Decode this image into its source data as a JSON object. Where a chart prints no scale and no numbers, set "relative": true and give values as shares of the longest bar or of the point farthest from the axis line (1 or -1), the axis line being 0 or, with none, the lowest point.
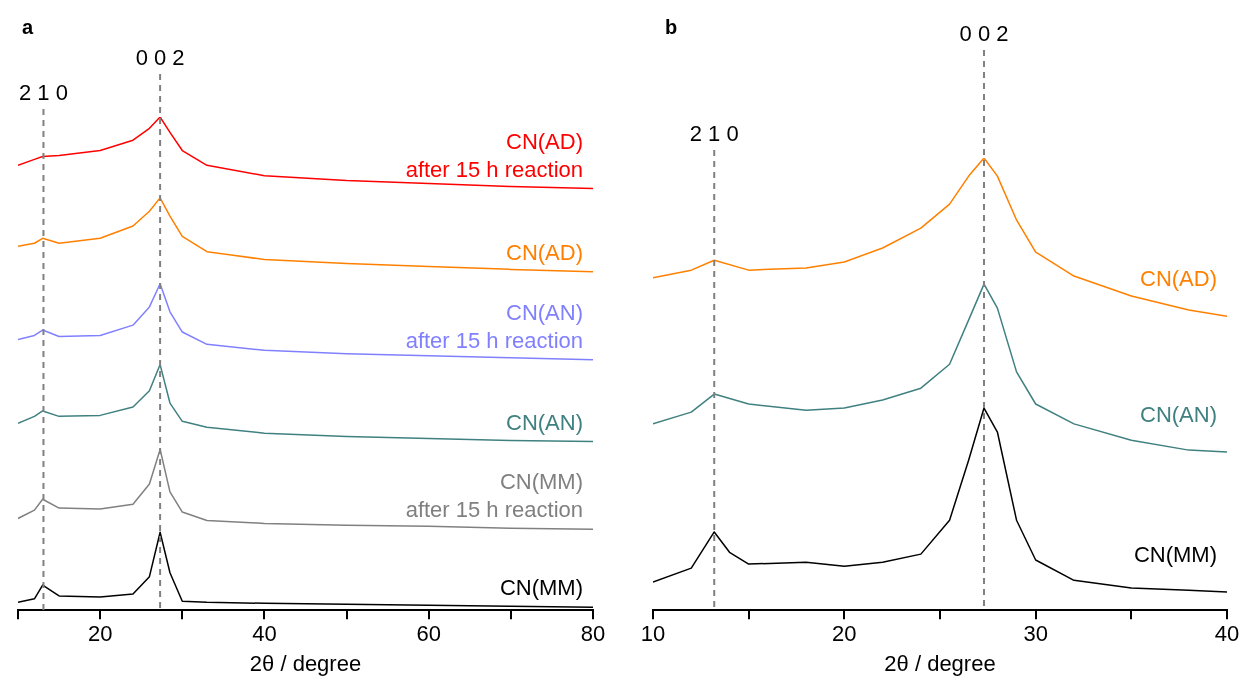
{
  "chart_data": [
    {
      "type": "line",
      "title": "a",
      "xlabel": "2θ / degree",
      "relative": true,
      "xlim": [
        10,
        80
      ],
      "xticks": [
        {
          "value": 10,
          "label": null
        },
        20,
        {
          "value": 30,
          "label": null
        },
        40,
        {
          "value": 50,
          "label": null
        },
        60,
        {
          "value": 70,
          "label": null
        },
        80
      ],
      "grid": false,
      "legend": false,
      "marker": "none",
      "line_style": "solid",
      "tick_labels": "x",
      "ref_lines": [
        {
          "axis": "x",
          "value": 13.1,
          "color": "#808080",
          "line_style": "dashed"
        },
        {
          "axis": "x",
          "value": 27.3,
          "color": "#808080",
          "line_style": "dashed"
        }
      ],
      "annotations": [
        "2 1 0",
        "0 0 2"
      ],
      "series": [
        {
          "name": "CN(AD)\nafter 15 h reaction",
          "color": "#ff0000",
          "x": [
            10,
            12,
            13,
            15,
            20,
            24,
            26,
            27.3,
            28.5,
            30,
            33,
            40,
            50,
            60,
            70,
            80
          ],
          "values": [
            0.902,
            0.914,
            0.92,
            0.922,
            0.932,
            0.953,
            0.977,
            1.0,
            0.969,
            0.932,
            0.902,
            0.881,
            0.871,
            0.865,
            0.859,
            0.855
          ]
        },
        {
          "name": "CN(AD)",
          "color": "#ff8000",
          "x": [
            10,
            12,
            13,
            15,
            20,
            24,
            26,
            27.3,
            28.5,
            30,
            33,
            40,
            50,
            60,
            70,
            80
          ],
          "values": [
            0.738,
            0.744,
            0.754,
            0.744,
            0.754,
            0.779,
            0.809,
            0.836,
            0.799,
            0.758,
            0.727,
            0.711,
            0.703,
            0.697,
            0.691,
            0.686
          ]
        },
        {
          "name": "CN(AN)\nafter 15 h reaction",
          "color": "#8080ff",
          "x": [
            10,
            12,
            13,
            15,
            20,
            24,
            26,
            27.3,
            28.5,
            30,
            33,
            40,
            50,
            60,
            70,
            80
          ],
          "values": [
            0.549,
            0.557,
            0.568,
            0.555,
            0.557,
            0.578,
            0.615,
            0.662,
            0.605,
            0.564,
            0.539,
            0.527,
            0.52,
            0.516,
            0.512,
            0.508
          ]
        },
        {
          "name": "CN(AN)",
          "color": "#408080",
          "x": [
            10,
            12,
            13,
            15,
            20,
            24,
            26,
            27.3,
            28.5,
            30,
            33,
            40,
            50,
            60,
            70,
            80
          ],
          "values": [
            0.379,
            0.393,
            0.404,
            0.393,
            0.395,
            0.412,
            0.445,
            0.498,
            0.42,
            0.383,
            0.371,
            0.359,
            0.352,
            0.348,
            0.344,
            0.342
          ]
        },
        {
          "name": "CN(MM)\nafter 15 h reaction",
          "color": "#808080",
          "x": [
            10,
            12,
            13,
            15,
            20,
            24,
            26,
            27.3,
            28.5,
            30,
            33,
            40,
            50,
            60,
            70,
            80
          ],
          "values": [
            0.186,
            0.203,
            0.225,
            0.207,
            0.205,
            0.215,
            0.256,
            0.326,
            0.24,
            0.199,
            0.182,
            0.176,
            0.172,
            0.17,
            0.166,
            0.164
          ]
        },
        {
          "name": "CN(MM)",
          "color": "#000000",
          "x": [
            10,
            12,
            13,
            15,
            20,
            24,
            26,
            27.3,
            28.5,
            30,
            33,
            40,
            50,
            60,
            70,
            80
          ],
          "values": [
            0.016,
            0.023,
            0.051,
            0.029,
            0.027,
            0.033,
            0.068,
            0.158,
            0.076,
            0.018,
            0.016,
            0.014,
            0.012,
            0.01,
            0.008,
            0.006
          ]
        }
      ]
    },
    {
      "type": "line",
      "title": "b",
      "xlabel": "2θ / degree",
      "relative": true,
      "xlim": [
        10,
        40
      ],
      "xticks": [
        10,
        {
          "value": 15,
          "label": null
        },
        20,
        {
          "value": 25,
          "label": null
        },
        30,
        {
          "value": 35,
          "label": null
        },
        40
      ],
      "grid": false,
      "legend": false,
      "marker": "none",
      "line_style": "solid",
      "tick_labels": "x",
      "ref_lines": [
        {
          "axis": "x",
          "value": 13.2,
          "color": "#808080",
          "line_style": "dashed"
        },
        {
          "axis": "x",
          "value": 27.3,
          "color": "#808080",
          "line_style": "dashed"
        }
      ],
      "annotations": [
        "2 1 0",
        "0 0 2"
      ],
      "series": [
        {
          "name": "CN(AD)",
          "color": "#ff8000",
          "x": [
            10,
            12,
            13.2,
            15,
            18,
            20,
            22,
            24,
            25.5,
            26.5,
            27.3,
            28,
            29,
            30,
            32,
            35,
            38,
            40
          ],
          "values": [
            0.735,
            0.752,
            0.774,
            0.752,
            0.757,
            0.77,
            0.801,
            0.845,
            0.898,
            0.96,
            1.0,
            0.96,
            0.863,
            0.792,
            0.739,
            0.695,
            0.664,
            0.65
          ]
        },
        {
          "name": "CN(AN)",
          "color": "#408080",
          "x": [
            10,
            12,
            13.2,
            15,
            18,
            20,
            22,
            24,
            25.5,
            26.5,
            27.3,
            28,
            29,
            30,
            32,
            35,
            38,
            40
          ],
          "values": [
            0.412,
            0.438,
            0.478,
            0.456,
            0.442,
            0.447,
            0.465,
            0.491,
            0.544,
            0.642,
            0.721,
            0.668,
            0.527,
            0.456,
            0.412,
            0.376,
            0.354,
            0.35
          ]
        },
        {
          "name": "CN(MM)",
          "color": "#000000",
          "x": [
            10,
            12,
            13.2,
            14,
            15,
            18,
            20,
            22,
            24,
            25.5,
            26.5,
            27.3,
            28,
            29,
            30,
            32,
            35,
            38,
            40
          ],
          "values": [
            0.062,
            0.093,
            0.173,
            0.128,
            0.102,
            0.106,
            0.097,
            0.106,
            0.124,
            0.199,
            0.332,
            0.447,
            0.394,
            0.199,
            0.111,
            0.066,
            0.049,
            0.044,
            0.04
          ]
        }
      ]
    }
  ]
}
